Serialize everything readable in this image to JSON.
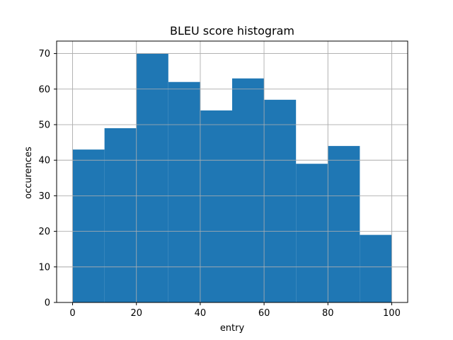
{
  "chart_data": {
    "type": "bar",
    "title": "BLEU score histogram",
    "xlabel": "entry",
    "ylabel": "occurences",
    "bins": [
      {
        "x0": 0,
        "x1": 10,
        "count": 43
      },
      {
        "x0": 10,
        "x1": 20,
        "count": 49
      },
      {
        "x0": 20,
        "x1": 30,
        "count": 70
      },
      {
        "x0": 30,
        "x1": 40,
        "count": 62
      },
      {
        "x0": 40,
        "x1": 50,
        "count": 54
      },
      {
        "x0": 50,
        "x1": 60,
        "count": 63
      },
      {
        "x0": 60,
        "x1": 70,
        "count": 57
      },
      {
        "x0": 70,
        "x1": 80,
        "count": 39
      },
      {
        "x0": 80,
        "x1": 90,
        "count": 44
      },
      {
        "x0": 90,
        "x1": 100,
        "count": 19
      }
    ],
    "xlim": [
      -5,
      105
    ],
    "ylim": [
      0,
      73.5
    ],
    "xticks": [
      0,
      20,
      40,
      60,
      80,
      100
    ],
    "yticks": [
      0,
      10,
      20,
      30,
      40,
      50,
      60,
      70
    ],
    "grid": true,
    "bar_color": "#1f77b4"
  }
}
